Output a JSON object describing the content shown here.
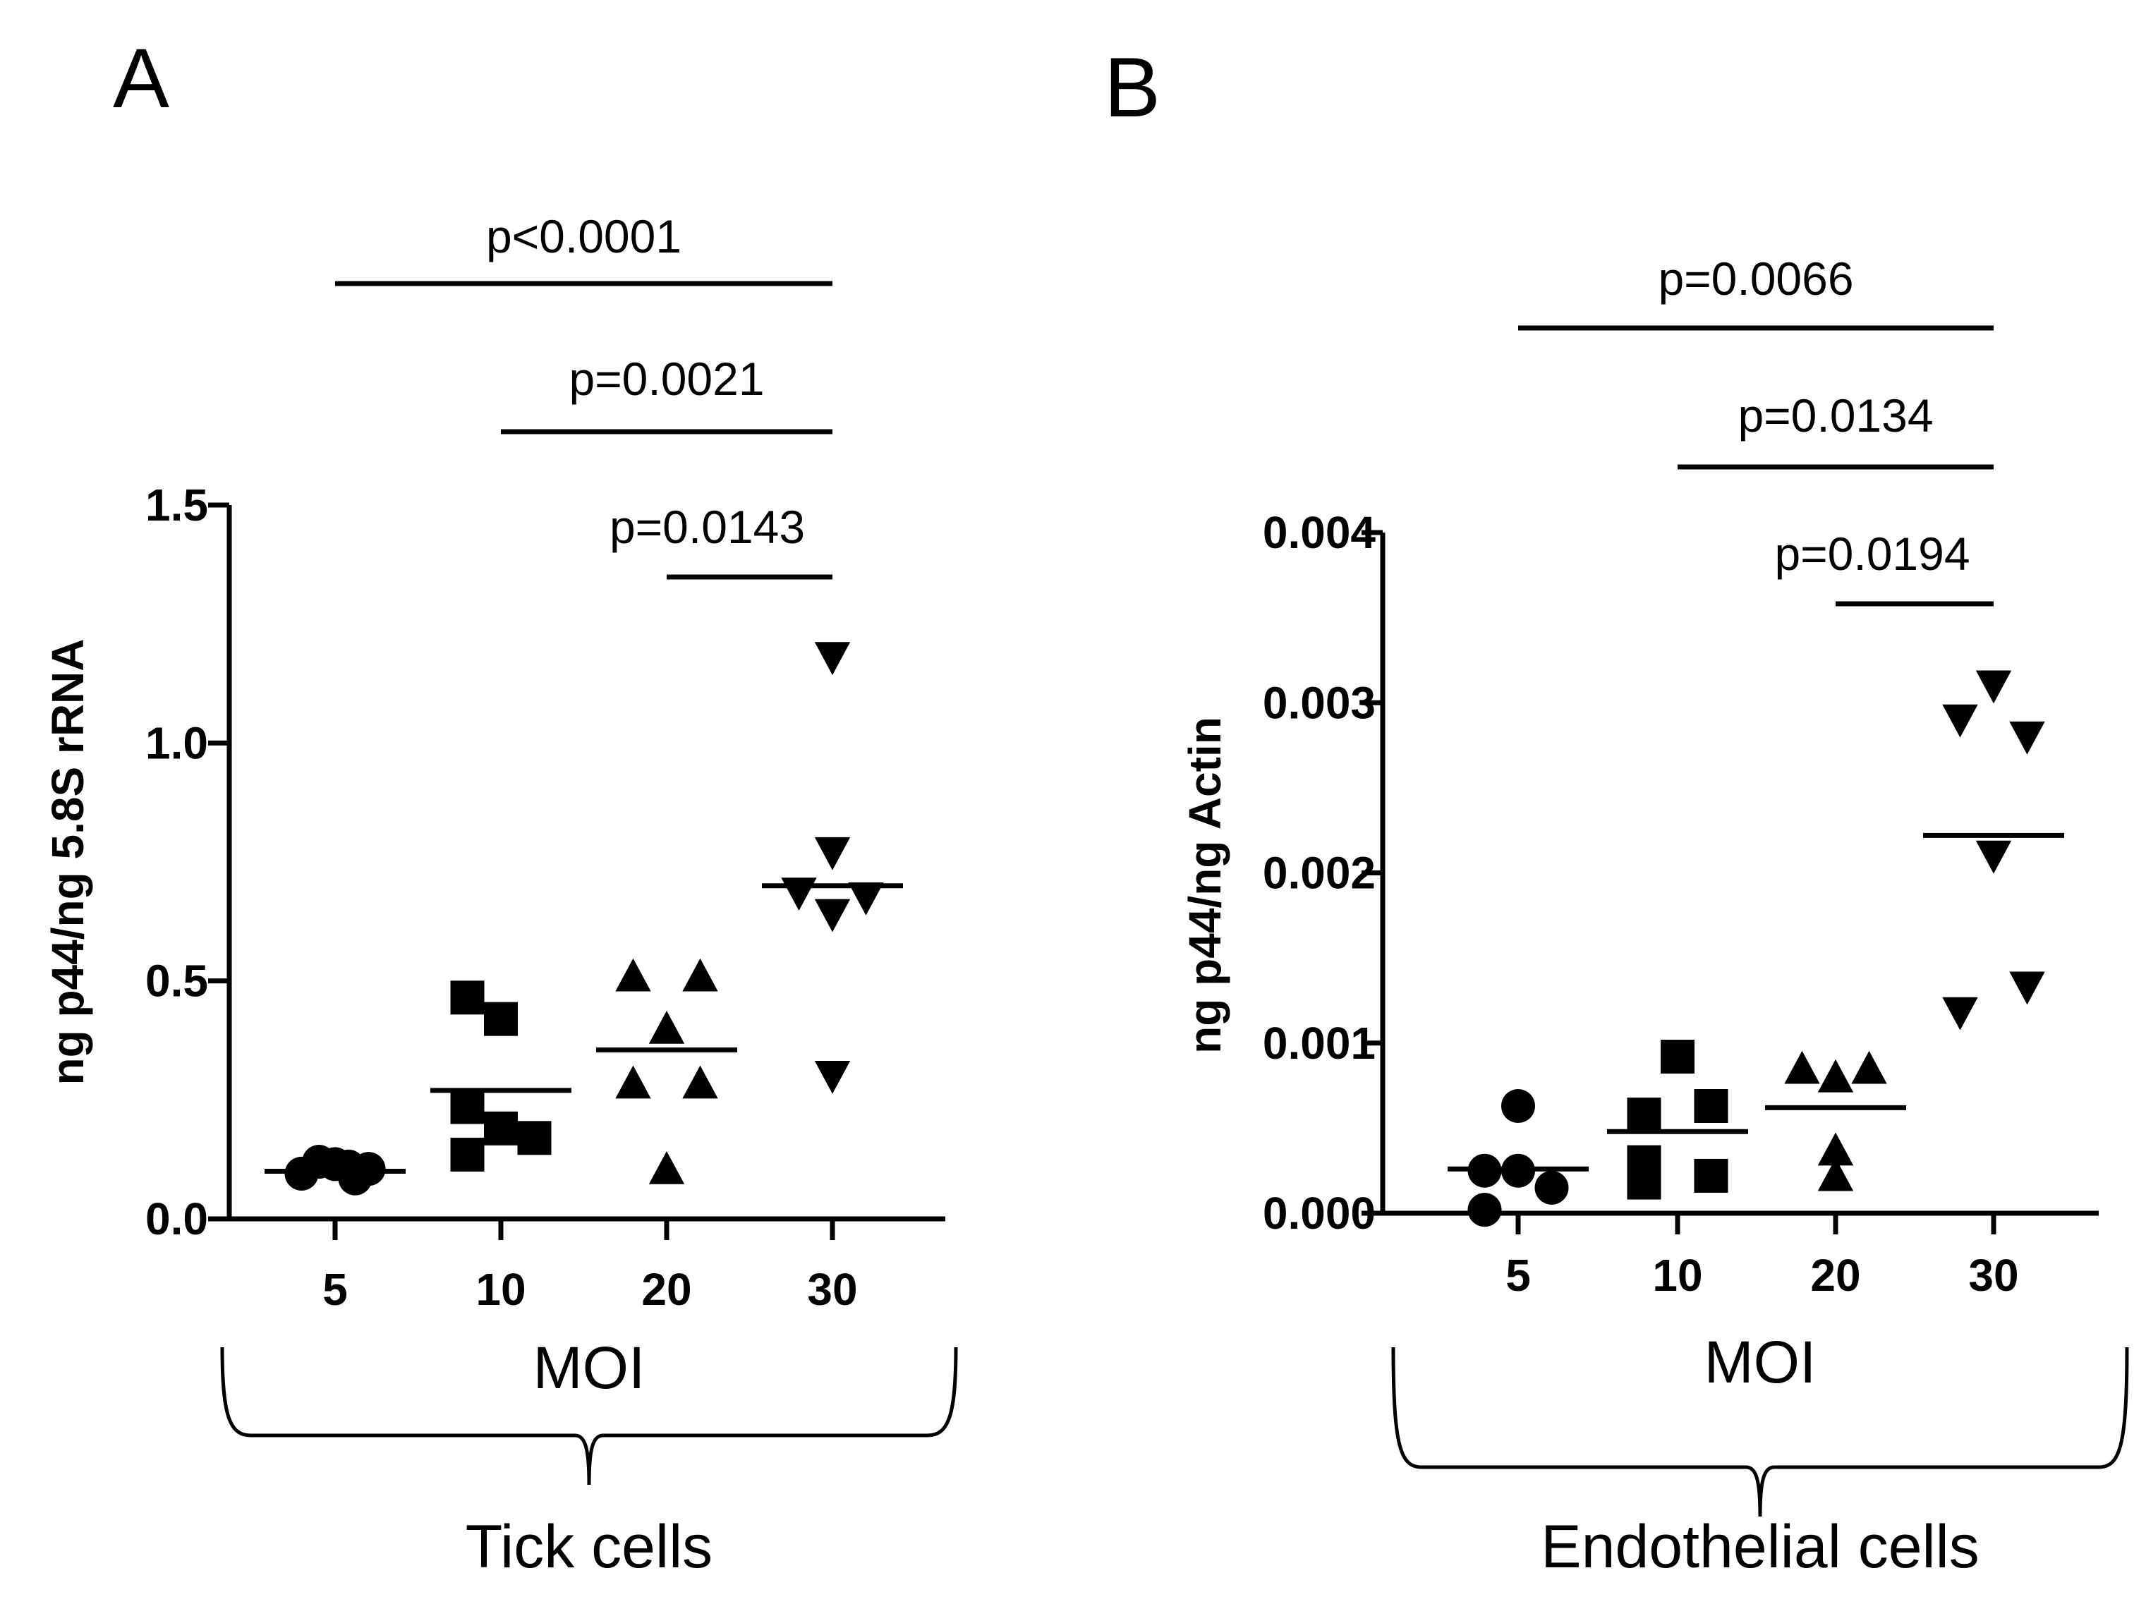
{
  "chart_data": [
    {
      "panel": "A",
      "type": "scatter",
      "ylabel": "ng p44/ng 5.8S rRNA",
      "xlabel": "MOI",
      "group_label": "Tick cells",
      "ylim": [
        0,
        1.5
      ],
      "yticks": [
        "0.0",
        "0.5",
        "1.0",
        "1.5"
      ],
      "categories": [
        "5",
        "10",
        "20",
        "30"
      ],
      "series": [
        {
          "name": "5",
          "marker": "circle",
          "points": [
            [
              -0.25,
              0.095
            ],
            [
              -0.12,
              0.12
            ],
            [
              0.0,
              0.115
            ],
            [
              0.1,
              0.11
            ],
            [
              0.15,
              0.085
            ],
            [
              0.25,
              0.105
            ]
          ],
          "mean": 0.1
        },
        {
          "name": "10",
          "marker": "square",
          "points": [
            [
              -0.25,
              0.465
            ],
            [
              0.0,
              0.42
            ],
            [
              -0.25,
              0.135
            ],
            [
              0.0,
              0.19
            ],
            [
              0.25,
              0.17
            ],
            [
              -0.25,
              0.235
            ]
          ],
          "mean": 0.27
        },
        {
          "name": "20",
          "marker": "triangle-up",
          "points": [
            [
              -0.25,
              0.51
            ],
            [
              0.25,
              0.51
            ],
            [
              0.0,
              0.4
            ],
            [
              -0.25,
              0.285
            ],
            [
              0.25,
              0.285
            ],
            [
              0.0,
              0.105
            ]
          ],
          "mean": 0.355
        },
        {
          "name": "30",
          "marker": "triangle-down",
          "points": [
            [
              0.0,
              1.18
            ],
            [
              0.0,
              0.77
            ],
            [
              -0.25,
              0.685
            ],
            [
              0.25,
              0.675
            ],
            [
              0.0,
              0.64
            ],
            [
              0.0,
              0.3
            ]
          ],
          "mean": 0.7
        }
      ],
      "comparisons": [
        {
          "from": "5",
          "to": "30",
          "label": "p<0.0001"
        },
        {
          "from": "10",
          "to": "30",
          "label": "p=0.0021"
        },
        {
          "from": "20",
          "to": "30",
          "label": "p=0.0143"
        }
      ]
    },
    {
      "panel": "B",
      "type": "scatter",
      "ylabel": "ng p44/ng Actin",
      "xlabel": "MOI",
      "group_label": "Endothelial cells",
      "ylim": [
        0,
        0.004
      ],
      "yticks": [
        "0.000",
        "0.001",
        "0.002",
        "0.003",
        "0.004"
      ],
      "categories": [
        "5",
        "10",
        "20",
        "30"
      ],
      "series": [
        {
          "name": "5",
          "marker": "circle",
          "points": [
            [
              0.0,
              0.00063
            ],
            [
              -0.25,
              0.00025
            ],
            [
              0.0,
              0.00025
            ],
            [
              0.25,
              0.00015
            ],
            [
              -0.25,
              2e-05
            ]
          ],
          "mean": 0.00026
        },
        {
          "name": "10",
          "marker": "square",
          "points": [
            [
              0.0,
              0.00092
            ],
            [
              -0.25,
              0.00058
            ],
            [
              0.25,
              0.00063
            ],
            [
              -0.25,
              0.0003
            ],
            [
              -0.25,
              0.00018
            ],
            [
              0.25,
              0.00022
            ]
          ],
          "mean": 0.00048
        },
        {
          "name": "20",
          "marker": "triangle-up",
          "points": [
            [
              -0.25,
              0.00085
            ],
            [
              0.0,
              0.0008
            ],
            [
              0.25,
              0.00085
            ],
            [
              0.0,
              0.00037
            ],
            [
              0.0,
              0.00022
            ]
          ],
          "mean": 0.00062
        },
        {
          "name": "30",
          "marker": "triangle-down",
          "points": [
            [
              0.0,
              0.0031
            ],
            [
              -0.25,
              0.0029
            ],
            [
              0.25,
              0.0028
            ],
            [
              0.0,
              0.0021
            ],
            [
              -0.25,
              0.00118
            ],
            [
              0.25,
              0.00133
            ]
          ],
          "mean": 0.00222
        }
      ],
      "comparisons": [
        {
          "from": "5",
          "to": "30",
          "label": "p=0.0066"
        },
        {
          "from": "10",
          "to": "30",
          "label": "p=0.0134"
        },
        {
          "from": "20",
          "to": "30",
          "label": "p=0.0194"
        }
      ]
    }
  ]
}
